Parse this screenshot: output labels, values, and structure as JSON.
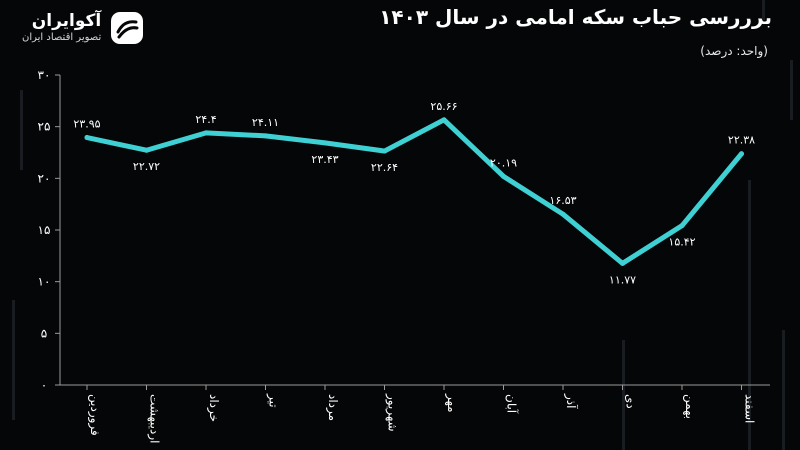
{
  "brand": {
    "name": "آکوایران",
    "tagline": "تصویر اقتصاد ایران"
  },
  "colors": {
    "background": "#050607",
    "line": "#3fd0d4",
    "axis": "#9a9a9a",
    "text": "#ffffff"
  },
  "chart_data": {
    "type": "line",
    "title": "برررسی حباب سکه امامی در سال ۱۴۰۳",
    "unit_label": "(واحد: درصد)",
    "categories": [
      "فروردین",
      "اردیبهشت",
      "خرداد",
      "تیر",
      "مرداد",
      "شهریور",
      "مهر",
      "آبان",
      "آذر",
      "دی",
      "بهمن",
      "اسفند"
    ],
    "values": [
      23.95,
      22.72,
      24.4,
      24.11,
      23.43,
      22.64,
      25.66,
      20.19,
      16.53,
      11.77,
      15.42,
      22.38
    ],
    "value_labels": [
      "۲۳.۹۵",
      "۲۲.۷۲",
      "۲۴.۴",
      "۲۴.۱۱",
      "۲۳.۴۳",
      "۲۲.۶۴",
      "۲۵.۶۶",
      "۲۰.۱۹",
      "۱۶.۵۳",
      "۱۱.۷۷",
      "۱۵.۴۲",
      "۲۲.۳۸"
    ],
    "label_position": [
      "above",
      "below",
      "above",
      "above",
      "below",
      "below",
      "above",
      "above",
      "above",
      "below",
      "below",
      "above"
    ],
    "yticks": [
      0,
      5,
      10,
      15,
      20,
      25,
      30
    ],
    "ytick_labels": [
      "۰",
      "۵",
      "۱۰",
      "۱۵",
      "۲۰",
      "۲۵",
      "۳۰"
    ],
    "ylim": [
      0,
      30
    ],
    "grid": false,
    "legend": false
  }
}
